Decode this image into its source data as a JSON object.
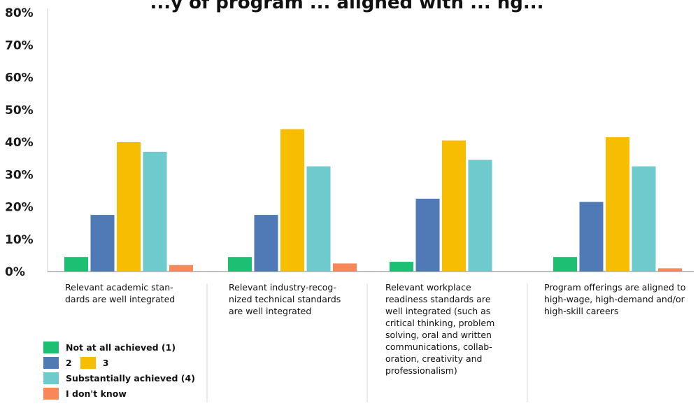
{
  "title": "...y of program ... aligned with ... ng...",
  "chart_data": {
    "type": "bar",
    "ylim": [
      0,
      80
    ],
    "y_ticks": [
      "0%",
      "10%",
      "20%",
      "30%",
      "40%",
      "50%",
      "60%",
      "70%",
      "80%"
    ],
    "categories": [
      "Relevant academic stan-\ndards are well integrated",
      "Relevant industry-recog-\nnized technical standards\nare well integrated",
      "Relevant workplace\nreadiness standards are\nwell integrated (such as\ncritical thinking, problem\nsolving, oral and written\ncommunications, collab-\noration, creativity and\nprofessionalism)",
      "Program offerings are aligned to\nhigh-wage, high-demand and/or\nhigh-skill careers"
    ],
    "series": [
      {
        "name": "Not at all achieved (1)",
        "color": "#1dbf73",
        "values": [
          4.5,
          4.5,
          3,
          4.5
        ]
      },
      {
        "name": "2",
        "color": "#4f7ab5",
        "values": [
          17.5,
          17.5,
          22.5,
          21.5
        ]
      },
      {
        "name": "3",
        "color": "#f7bd00",
        "values": [
          40,
          44,
          40.5,
          41.5
        ]
      },
      {
        "name": "Substantially achieved (4)",
        "color": "#6ecacd",
        "values": [
          37,
          32.5,
          34.5,
          32.5
        ]
      },
      {
        "name": "I don't know",
        "color": "#f8875a",
        "values": [
          2,
          2.5,
          0,
          1
        ]
      }
    ],
    "legend_position": "bottom-left",
    "grid": false
  }
}
